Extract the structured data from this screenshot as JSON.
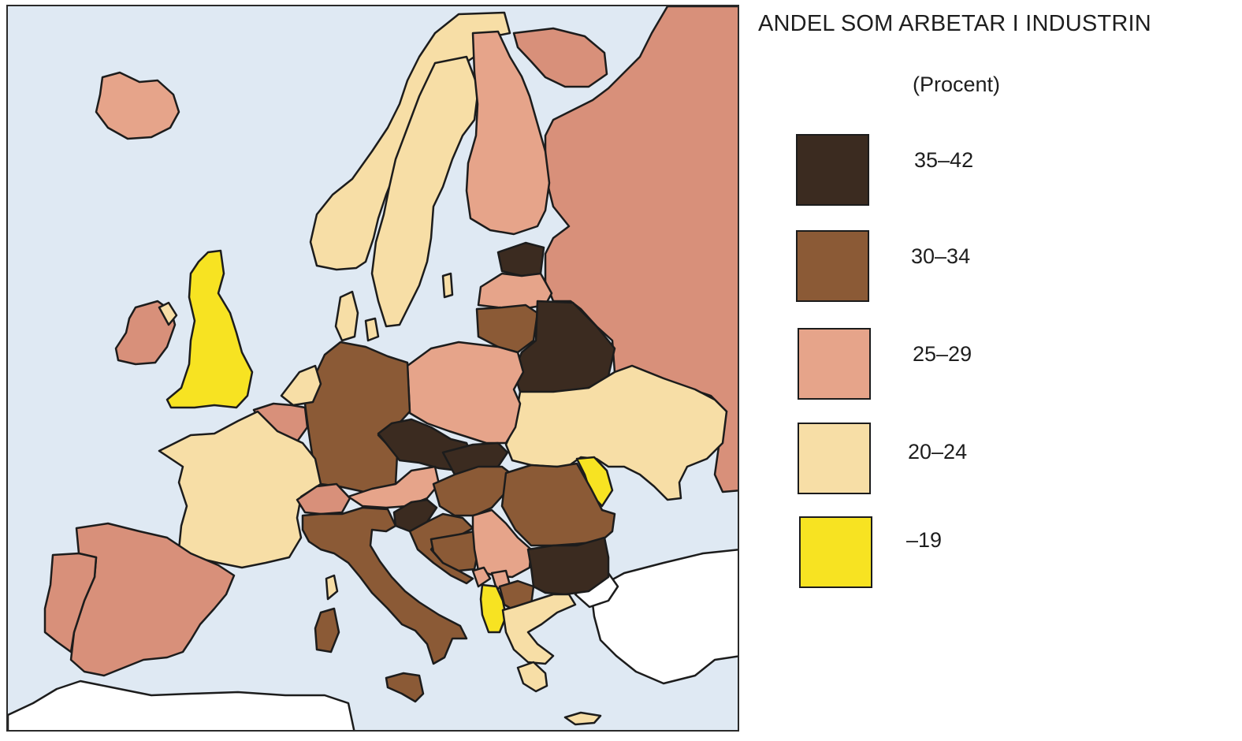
{
  "legend": {
    "title": "ANDEL SOM ARBETAR I INDUSTRIN",
    "unit": "(Procent)",
    "classes": [
      {
        "label": "35–42",
        "color": "#3b2b20"
      },
      {
        "label": "30–34",
        "color": "#8b5a36"
      },
      {
        "label": "25–29",
        "color": "#e6a48a"
      },
      {
        "label": "20–24",
        "color": "#f7dea6"
      },
      {
        "label": "–19",
        "color": "#f7e322"
      }
    ]
  },
  "colors": {
    "sea": "#dfe9f3",
    "outside": "#ffffff",
    "russia": "#d8907a",
    "border": "#1c1c1c"
  }
}
